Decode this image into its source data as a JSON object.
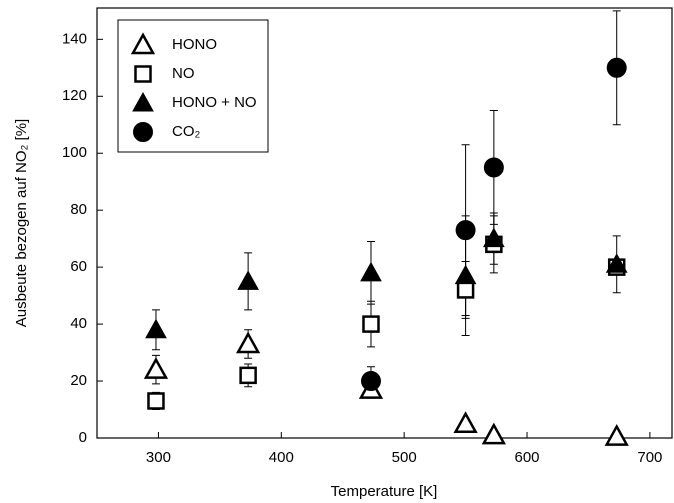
{
  "chart_data": {
    "type": "scatter",
    "x_label": "Temperature [K]",
    "y_label": "Ausbeute bezogen auf NO₂ [%]",
    "xlim": [
      250,
      718
    ],
    "xticks": [
      300,
      400,
      500,
      600,
      700
    ],
    "ylim": [
      0,
      151
    ],
    "yticks": [
      0,
      20,
      40,
      60,
      80,
      100,
      120,
      140
    ],
    "series": [
      {
        "name": "HONO",
        "marker": "triangle-open",
        "color": "#000000",
        "x": [
          298,
          373,
          473,
          550,
          573,
          673
        ],
        "values": [
          24,
          33,
          17,
          5,
          1,
          0.5
        ],
        "errors": [
          5,
          5,
          3,
          null,
          null,
          null
        ]
      },
      {
        "name": "NO",
        "marker": "square-open",
        "color": "#000000",
        "x": [
          298,
          373,
          473,
          550,
          573,
          673
        ],
        "values": [
          13,
          22,
          40,
          52,
          68,
          60
        ],
        "errors": [
          3,
          4,
          8,
          10,
          10,
          null
        ]
      },
      {
        "name": "HONO + NO",
        "marker": "triangle-filled",
        "color": "#000000",
        "x": [
          298,
          373,
          473,
          550,
          573,
          673
        ],
        "values": [
          38,
          55,
          58,
          57,
          70,
          61
        ],
        "errors": [
          7,
          10,
          11,
          21,
          9,
          10
        ]
      },
      {
        "name": "CO₂",
        "marker": "circle-filled",
        "color": "#000000",
        "x": [
          473,
          550,
          573,
          673
        ],
        "values": [
          20,
          73,
          95,
          130
        ],
        "errors": [
          5,
          30,
          20,
          20
        ]
      }
    ]
  }
}
